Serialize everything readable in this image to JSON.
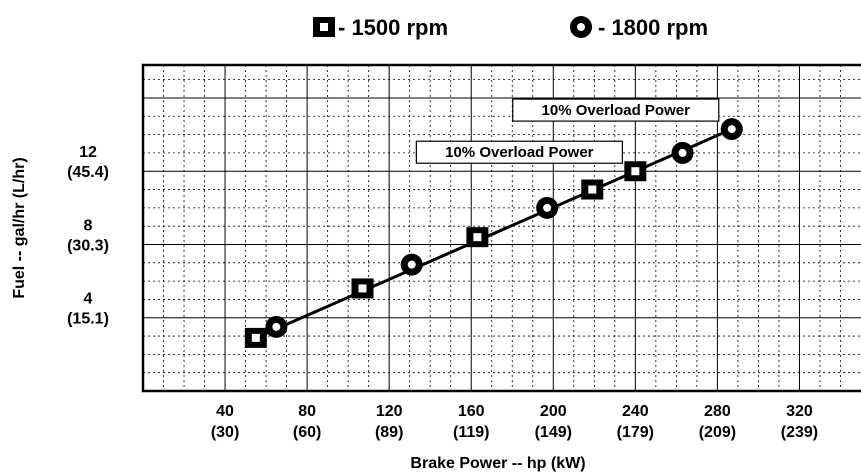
{
  "chart_data": {
    "type": "scatter",
    "title": "",
    "xlabel": "Brake Power -- hp (kW)",
    "ylabel": "Fuel -- gal/hr (L/hr)",
    "xlim": [
      0,
      350
    ],
    "ylim": [
      0,
      17.8
    ],
    "grid": true,
    "legend_position": "top",
    "x_ticks": [
      {
        "value": 40,
        "label": "40",
        "sublabel": "(30)"
      },
      {
        "value": 80,
        "label": "80",
        "sublabel": "(60)"
      },
      {
        "value": 120,
        "label": "120",
        "sublabel": "(89)"
      },
      {
        "value": 160,
        "label": "160",
        "sublabel": "(119)"
      },
      {
        "value": 200,
        "label": "200",
        "sublabel": "(149)"
      },
      {
        "value": 240,
        "label": "240",
        "sublabel": "(179)"
      },
      {
        "value": 280,
        "label": "280",
        "sublabel": "(209)"
      },
      {
        "value": 320,
        "label": "320",
        "sublabel": "(239)"
      }
    ],
    "y_ticks": [
      {
        "value": 4,
        "label": "4",
        "sublabel": "(15.1)"
      },
      {
        "value": 8,
        "label": "8",
        "sublabel": "(30.3)"
      },
      {
        "value": 12,
        "label": "12",
        "sublabel": "(45.4)"
      }
    ],
    "series": [
      {
        "name": "- 1500 rpm",
        "marker": "square",
        "points": [
          {
            "x": 55,
            "y": 2.9
          },
          {
            "x": 107,
            "y": 5.6
          },
          {
            "x": 163,
            "y": 8.4
          },
          {
            "x": 219,
            "y": 11.0
          },
          {
            "x": 240,
            "y": 12.0
          }
        ]
      },
      {
        "name": "- 1800 rpm",
        "marker": "circle",
        "points": [
          {
            "x": 65,
            "y": 3.5
          },
          {
            "x": 131,
            "y": 6.9
          },
          {
            "x": 197,
            "y": 10.0
          },
          {
            "x": 263,
            "y": 13.0
          },
          {
            "x": 287,
            "y": 14.3
          }
        ]
      }
    ],
    "trend_line": [
      {
        "x": 55,
        "y": 2.9
      },
      {
        "x": 287,
        "y": 14.3
      }
    ],
    "annotations": [
      {
        "text": "10% Overload Power",
        "x": 240,
        "y": 12.0
      },
      {
        "text": "10% Overload Power",
        "x": 287,
        "y": 14.3
      }
    ]
  }
}
